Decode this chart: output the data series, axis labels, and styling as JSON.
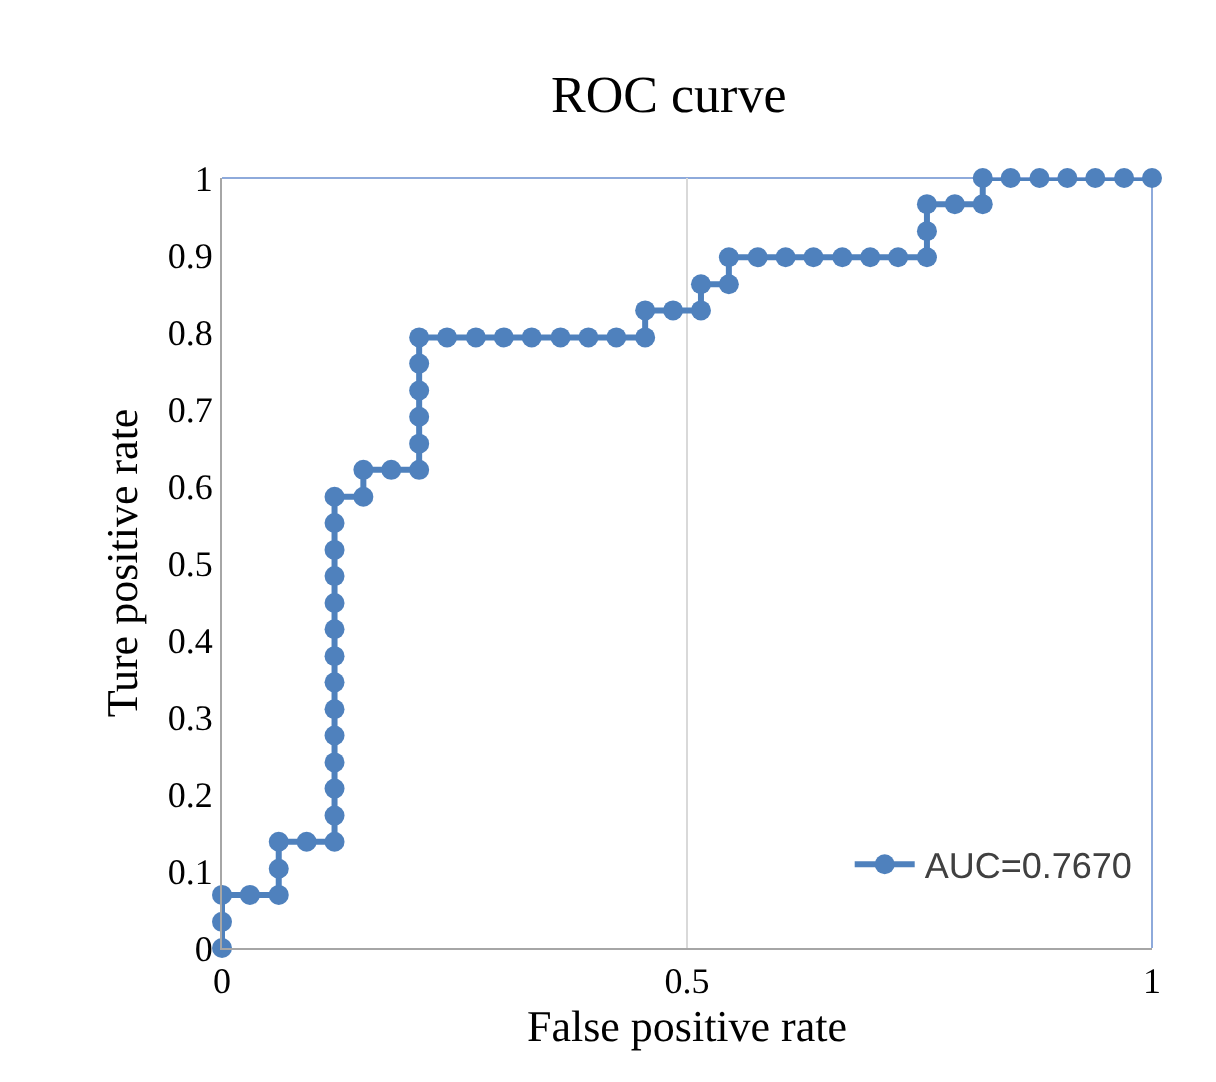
{
  "chart_data": {
    "type": "line",
    "title": "ROC curve",
    "xlabel": "False positive rate",
    "ylabel": "Ture positive rate",
    "xlim": [
      0,
      1
    ],
    "xticks": [
      0,
      0.5,
      1
    ],
    "ylim": [
      0,
      1
    ],
    "yticks": [
      0,
      0.1,
      0.2,
      0.3,
      0.4,
      0.5,
      0.6,
      0.7,
      0.8,
      0.9,
      1
    ],
    "grid": "x",
    "legend": "bottom right",
    "marker": "circle",
    "line_style": "solid",
    "series": [
      {
        "name": "AUC=0.7670",
        "color": "#4f81bd",
        "x": [
          0,
          0,
          0,
          0.03,
          0.061,
          0.061,
          0.061,
          0.091,
          0.121,
          0.121,
          0.121,
          0.121,
          0.121,
          0.121,
          0.121,
          0.121,
          0.121,
          0.121,
          0.121,
          0.121,
          0.121,
          0.121,
          0.152,
          0.152,
          0.182,
          0.212,
          0.212,
          0.212,
          0.212,
          0.212,
          0.212,
          0.242,
          0.273,
          0.303,
          0.333,
          0.364,
          0.394,
          0.424,
          0.455,
          0.455,
          0.485,
          0.515,
          0.515,
          0.545,
          0.545,
          0.576,
          0.606,
          0.636,
          0.667,
          0.697,
          0.727,
          0.758,
          0.758,
          0.758,
          0.788,
          0.818,
          0.818,
          0.848,
          0.879,
          0.909,
          0.939,
          0.97,
          1
        ],
        "values": [
          0,
          0.034,
          0.069,
          0.069,
          0.069,
          0.103,
          0.138,
          0.138,
          0.138,
          0.172,
          0.207,
          0.241,
          0.276,
          0.31,
          0.345,
          0.379,
          0.414,
          0.448,
          0.483,
          0.517,
          0.552,
          0.586,
          0.586,
          0.621,
          0.621,
          0.621,
          0.655,
          0.69,
          0.724,
          0.759,
          0.793,
          0.793,
          0.793,
          0.793,
          0.793,
          0.793,
          0.793,
          0.793,
          0.793,
          0.828,
          0.828,
          0.828,
          0.862,
          0.862,
          0.897,
          0.897,
          0.897,
          0.897,
          0.897,
          0.897,
          0.897,
          0.897,
          0.931,
          0.966,
          0.966,
          0.966,
          1,
          1,
          1,
          1,
          1,
          1,
          1
        ]
      }
    ]
  }
}
